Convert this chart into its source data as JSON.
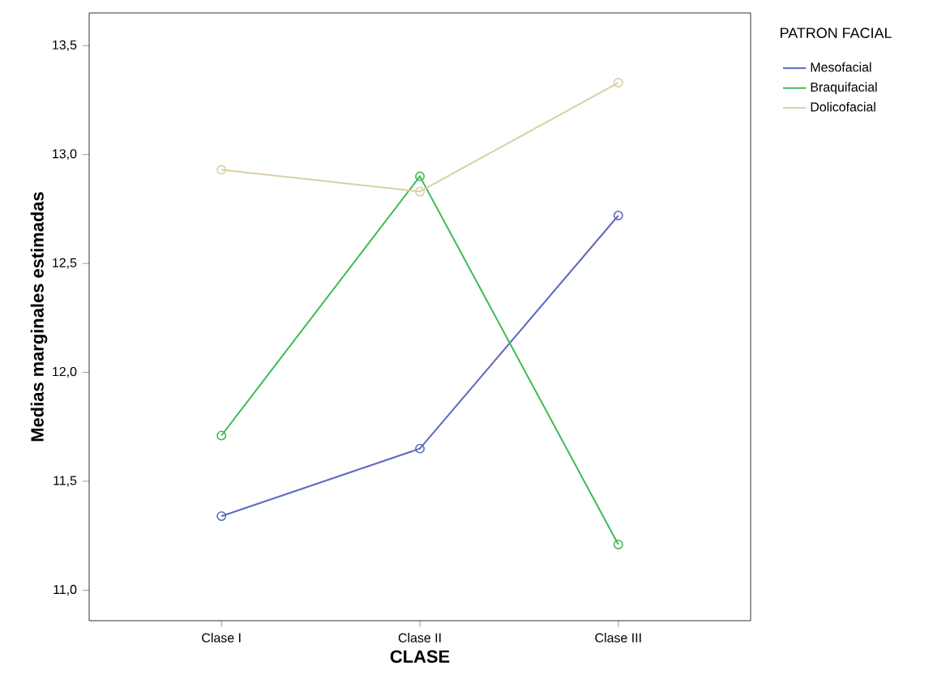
{
  "chart_data": {
    "type": "line",
    "xlabel": "CLASE",
    "ylabel": "Medias marginales estimadas",
    "legend_title": "PATRON FACIAL",
    "categories": [
      "Clase I",
      "Clase II",
      "Clase III"
    ],
    "series": [
      {
        "name": "Mesofacial",
        "color": "#5b6bbf",
        "values": [
          11.34,
          11.65,
          12.72
        ]
      },
      {
        "name": "Braquifacial",
        "color": "#3dbb55",
        "values": [
          11.71,
          12.9,
          11.21
        ]
      },
      {
        "name": "Dolicofacial",
        "color": "#d9cfa3",
        "values": [
          12.93,
          12.83,
          13.33
        ]
      }
    ],
    "ylim": [
      10.86,
      13.65
    ],
    "yticks": [
      {
        "value": 11.0,
        "label": "11,0"
      },
      {
        "value": 11.5,
        "label": "11,5"
      },
      {
        "value": 12.0,
        "label": "12,0"
      },
      {
        "value": 12.5,
        "label": "12,5"
      },
      {
        "value": 13.0,
        "label": "13,0"
      },
      {
        "value": 13.5,
        "label": "13,5"
      }
    ],
    "legend": "top right",
    "marker": "circle",
    "grid": false
  }
}
